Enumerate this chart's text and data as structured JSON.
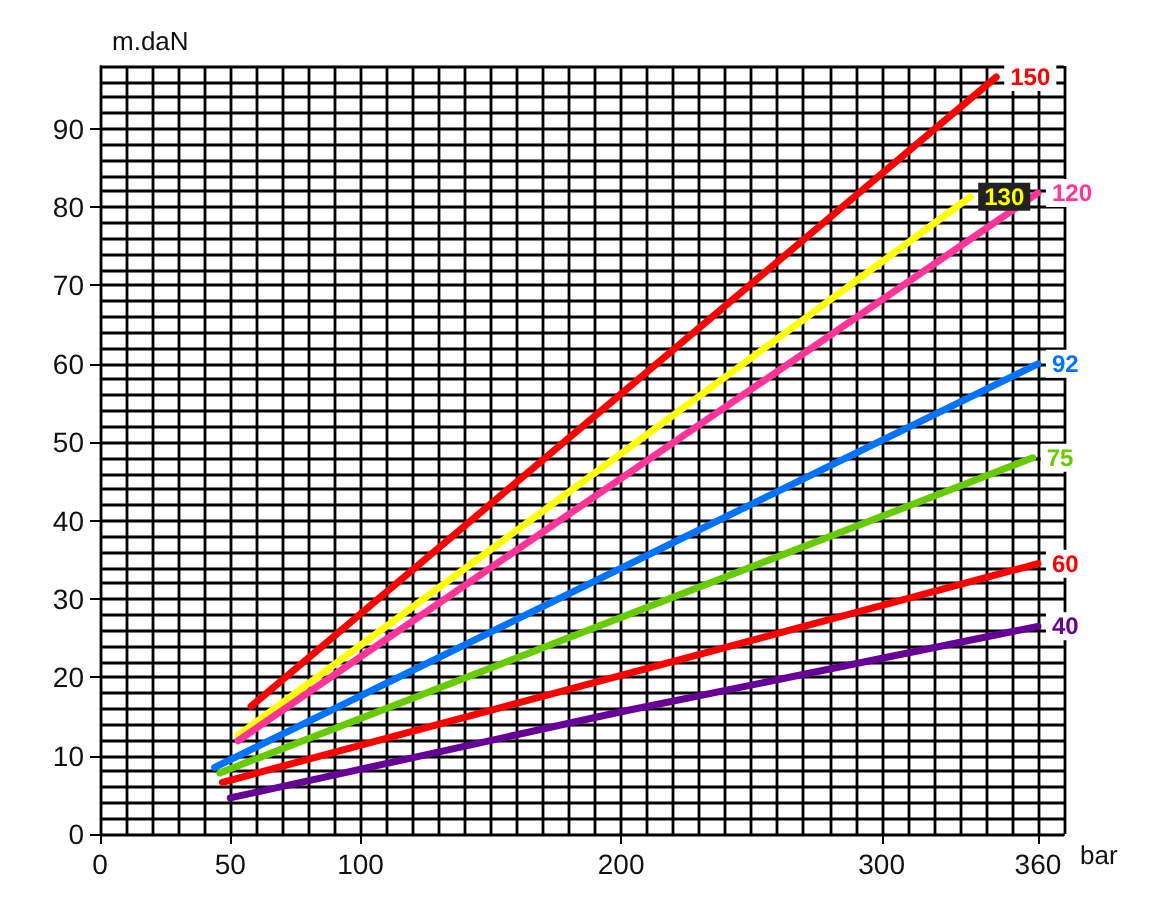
{
  "chart_data": {
    "type": "line",
    "xlabel": "bar",
    "ylabel": "m.daN",
    "xlim": [
      0,
      370
    ],
    "ylim": [
      0,
      98
    ],
    "xticks": [
      0,
      50,
      100,
      200,
      300,
      360
    ],
    "yticks": [
      0,
      10,
      20,
      30,
      40,
      50,
      60,
      70,
      80,
      90
    ],
    "grid": true,
    "legend": false,
    "marker": "none",
    "line_style": "solid",
    "series": [
      {
        "name": "150",
        "color": "#ff0000",
        "x": [
          58,
          344
        ],
        "values": [
          16.3,
          96.6
        ]
      },
      {
        "name": "130",
        "color": "#ffff00",
        "x": [
          53,
          334
        ],
        "values": [
          12.6,
          81.3
        ]
      },
      {
        "name": "120",
        "color": "#ff3399",
        "x": [
          53,
          360
        ],
        "values": [
          11.9,
          81.8
        ]
      },
      {
        "name": "92",
        "color": "#0073ff",
        "x": [
          44,
          360
        ],
        "values": [
          8.5,
          60
        ]
      },
      {
        "name": "75",
        "color": "#66cc00",
        "x": [
          46,
          358
        ],
        "values": [
          7.8,
          48
        ]
      },
      {
        "name": "60",
        "color": "#ff0000",
        "x": [
          47,
          360
        ],
        "values": [
          6.6,
          34.5
        ]
      },
      {
        "name": "40",
        "color": "#660099",
        "x": [
          50,
          200,
          360
        ],
        "values": [
          4.6,
          15.6,
          26.5
        ]
      }
    ]
  }
}
